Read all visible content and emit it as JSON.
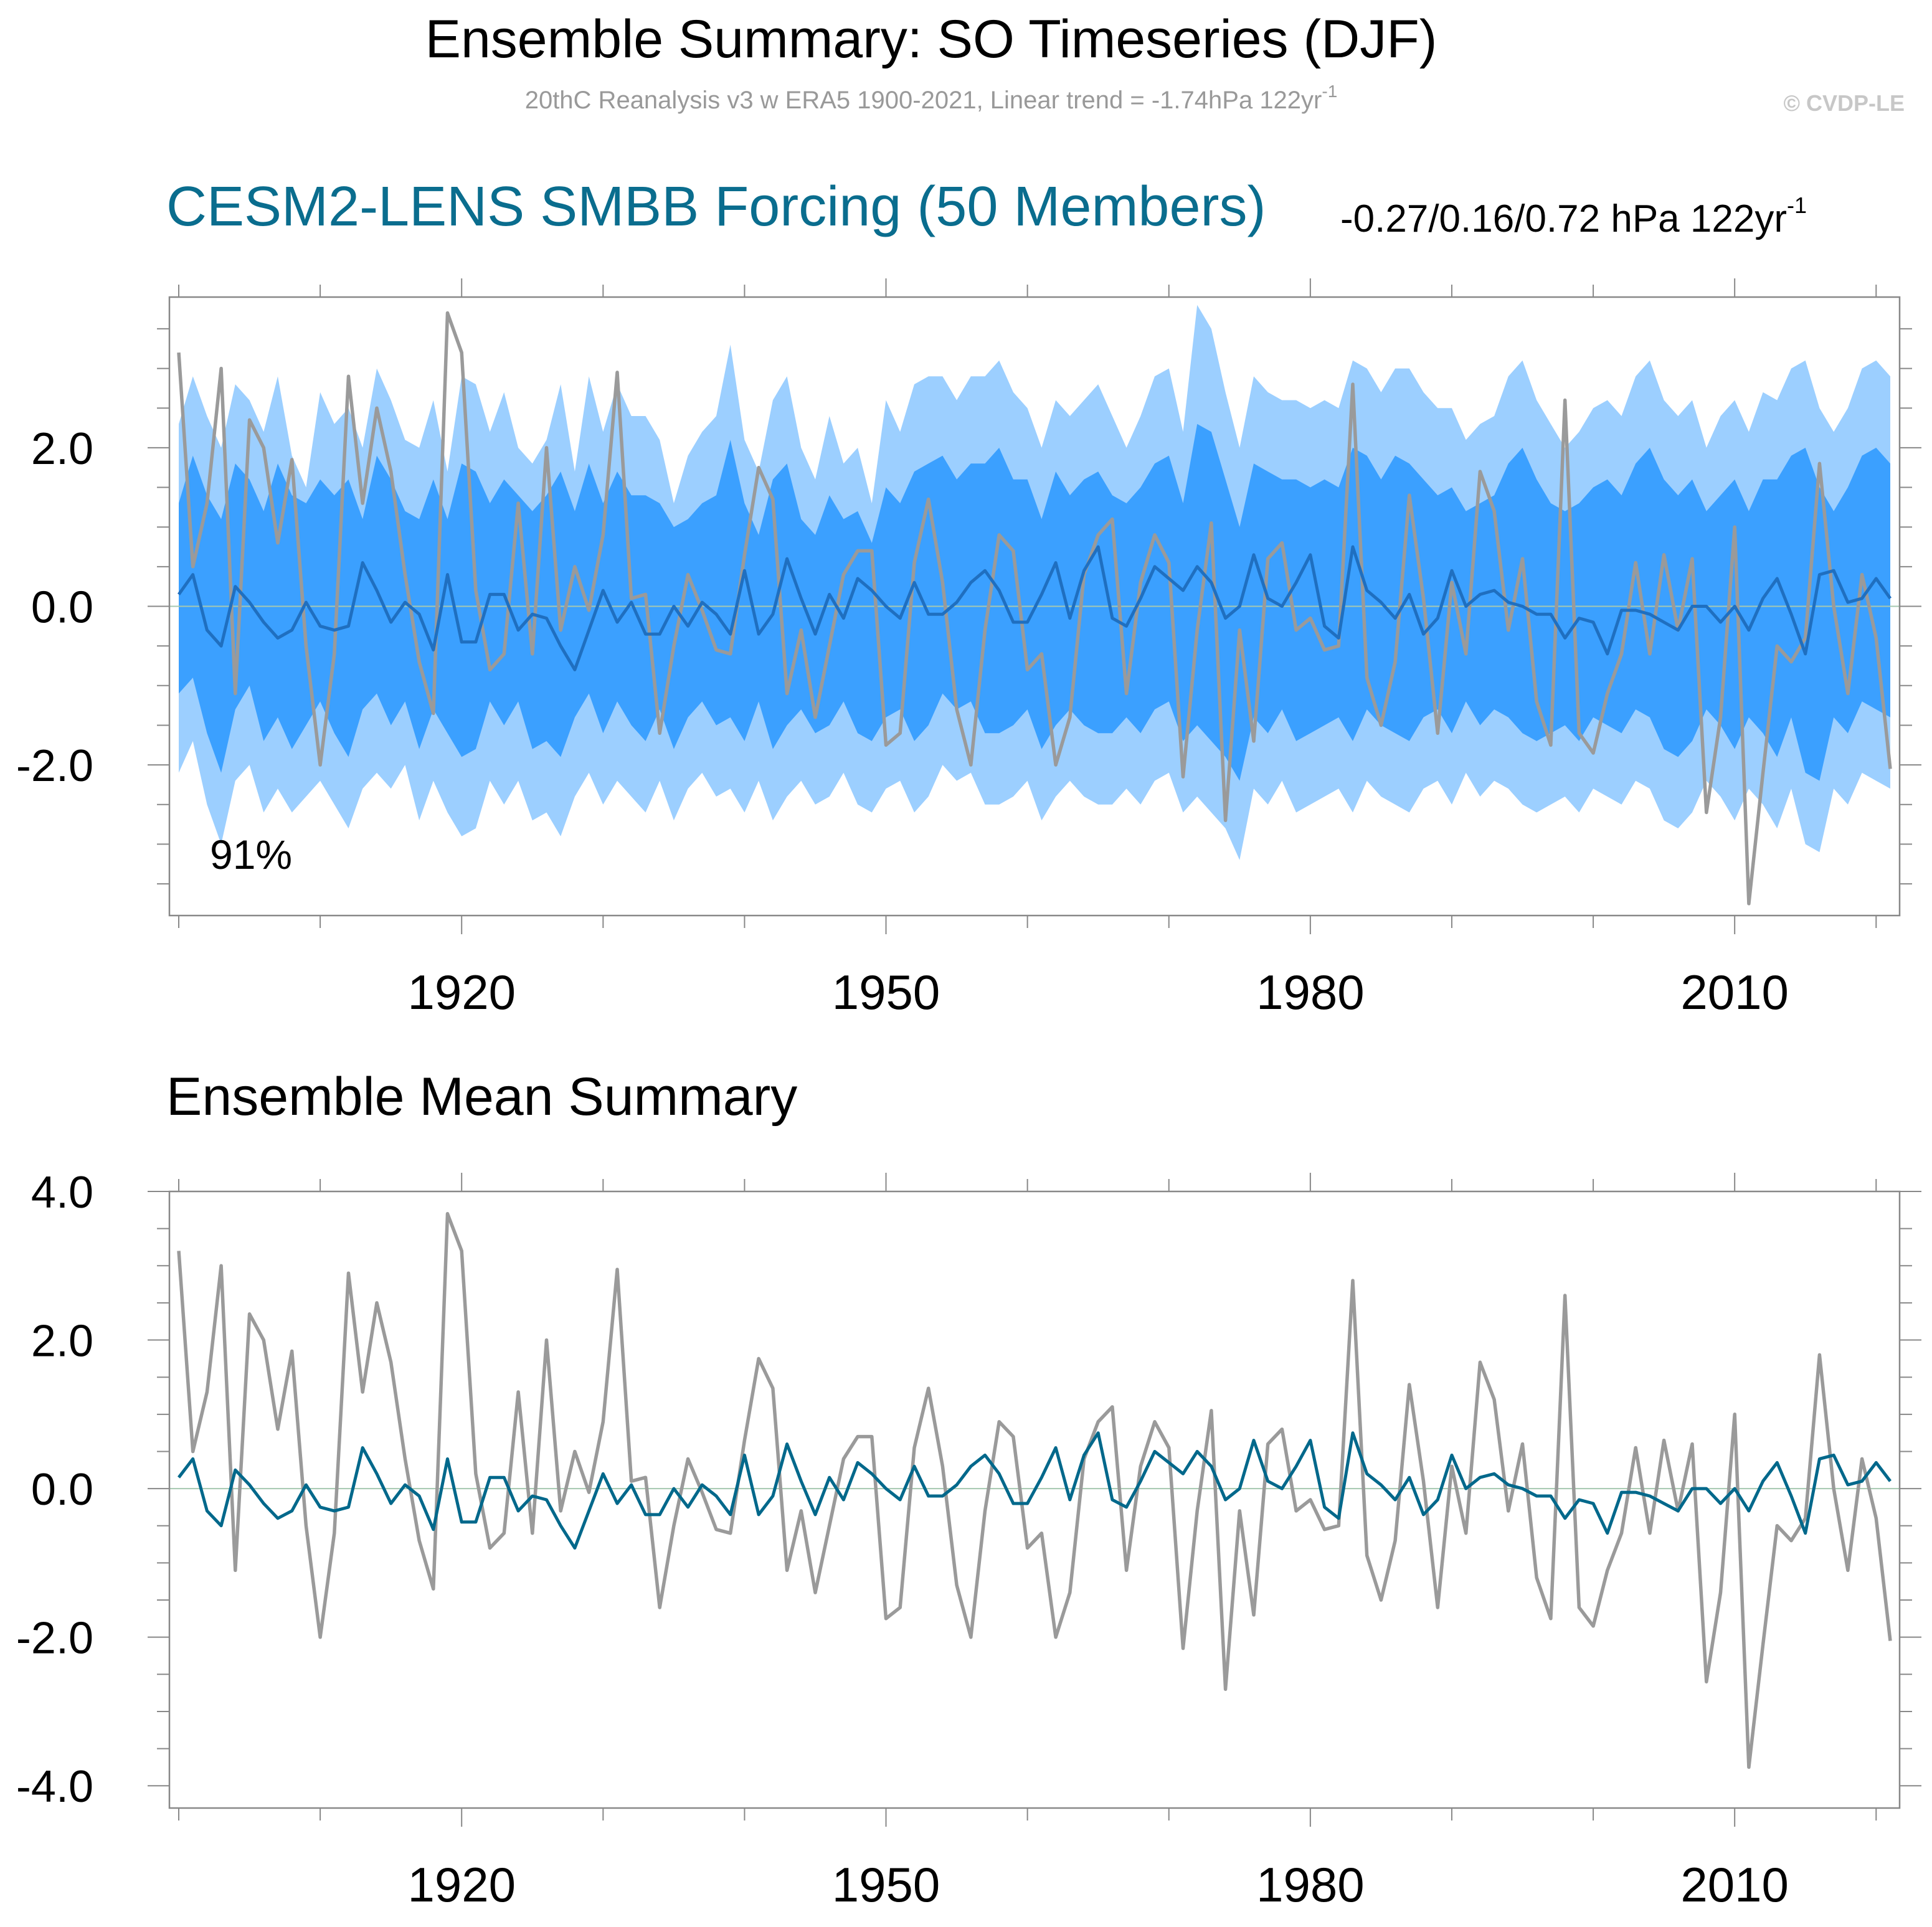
{
  "title": "Ensemble Summary: SO Timeseries (DJF)",
  "subtitle_main": "20thC Reanalysis v3 w ERA5 1900-2021, Linear trend = -1.74hPa 122yr",
  "subtitle_sup": "-1",
  "copyright": "© CVDP-LE",
  "panel1": {
    "title": "CESM2-LENS SMBB Forcing (50 Members)",
    "trend_main": "-0.27/0.16/0.72 hPa 122yr",
    "trend_sup": "-1",
    "percent_label": "91%"
  },
  "panel2": {
    "title": "Ensemble Mean Summary"
  },
  "colors": {
    "obs": "#9a9a9a",
    "mean_panel1": "#1f6fc0",
    "mean_panel2": "#00688b",
    "band_outer": "#9ccfff",
    "band_inner": "#3ba0ff",
    "title_teal": "#0a6d8e",
    "subtitle_gray": "#999999",
    "zero_line": "#a6c8b0"
  },
  "chart_data": [
    {
      "type": "area",
      "title": "CESM2-LENS SMBB Forcing (50 Members)",
      "xlabel": "",
      "ylabel": "",
      "xlim": [
        1900,
        2021
      ],
      "ylim": [
        -3.9,
        3.9
      ],
      "x_ticks": [
        1920,
        1950,
        1980,
        2010
      ],
      "x_tick_labels": [
        "1920",
        "1950",
        "1980",
        "2010"
      ],
      "y_ticks": [
        -2,
        0,
        2
      ],
      "y_tick_labels": [
        "-2.0",
        "0.0",
        "2.0"
      ],
      "annotation": "91%",
      "x_start": 1900,
      "series": [
        {
          "role": "band_outer_upper",
          "values": [
            2.3,
            2.9,
            2.4,
            2.0,
            2.8,
            2.6,
            2.2,
            2.9,
            1.9,
            1.5,
            2.7,
            2.3,
            2.5,
            2.0,
            3.0,
            2.6,
            2.1,
            2.0,
            2.6,
            1.7,
            2.9,
            2.8,
            2.2,
            2.7,
            2.0,
            1.8,
            2.1,
            2.8,
            1.7,
            2.9,
            2.2,
            2.8,
            2.4,
            2.4,
            2.1,
            1.3,
            1.9,
            2.2,
            2.4,
            3.3,
            2.1,
            1.7,
            2.6,
            2.9,
            2.0,
            1.6,
            2.4,
            1.8,
            2.0,
            1.3,
            2.6,
            2.2,
            2.8,
            2.9,
            2.9,
            2.6,
            2.9,
            2.9,
            3.1,
            2.7,
            2.5,
            2.0,
            2.6,
            2.4,
            2.6,
            2.8,
            2.4,
            2.0,
            2.4,
            2.9,
            3.0,
            2.2,
            3.8,
            3.5,
            2.7,
            2.0,
            2.9,
            2.7,
            2.6,
            2.6,
            2.5,
            2.6,
            2.5,
            3.1,
            3.0,
            2.7,
            3.0,
            3.0,
            2.7,
            2.5,
            2.5,
            2.1,
            2.3,
            2.4,
            2.9,
            3.1,
            2.6,
            2.3,
            2.0,
            2.2,
            2.5,
            2.6,
            2.4,
            2.9,
            3.1,
            2.6,
            2.4,
            2.6,
            2.0,
            2.4,
            2.6,
            2.2,
            2.7,
            2.6,
            3.0,
            3.1,
            2.5,
            2.2,
            2.5,
            3.0,
            3.1,
            2.9,
            2.6,
            3.3
          ]
        },
        {
          "role": "band_inner_upper",
          "values": [
            1.3,
            1.9,
            1.4,
            1.1,
            1.8,
            1.6,
            1.2,
            1.8,
            1.4,
            1.3,
            1.6,
            1.4,
            1.6,
            1.1,
            1.9,
            1.6,
            1.2,
            1.1,
            1.6,
            1.1,
            1.8,
            1.7,
            1.3,
            1.6,
            1.4,
            1.2,
            1.4,
            1.7,
            1.2,
            1.8,
            1.3,
            1.7,
            1.4,
            1.4,
            1.3,
            1.0,
            1.1,
            1.3,
            1.4,
            2.1,
            1.3,
            0.9,
            1.6,
            1.8,
            1.1,
            0.9,
            1.4,
            1.1,
            1.2,
            0.8,
            1.5,
            1.3,
            1.7,
            1.8,
            1.9,
            1.6,
            1.8,
            1.8,
            2.0,
            1.6,
            1.6,
            1.1,
            1.7,
            1.4,
            1.6,
            1.7,
            1.4,
            1.3,
            1.5,
            1.8,
            1.9,
            1.3,
            2.3,
            2.2,
            1.6,
            1.0,
            1.8,
            1.7,
            1.6,
            1.6,
            1.5,
            1.6,
            1.5,
            2.0,
            1.9,
            1.6,
            1.9,
            1.8,
            1.6,
            1.4,
            1.5,
            1.2,
            1.3,
            1.4,
            1.8,
            2.0,
            1.6,
            1.3,
            1.2,
            1.3,
            1.5,
            1.6,
            1.4,
            1.8,
            2.0,
            1.6,
            1.4,
            1.6,
            1.2,
            1.4,
            1.6,
            1.2,
            1.6,
            1.6,
            1.9,
            2.0,
            1.5,
            1.2,
            1.5,
            1.9,
            2.0,
            1.8,
            1.6,
            1.8
          ]
        },
        {
          "role": "band_inner_lower",
          "values": [
            -1.1,
            -0.9,
            -1.6,
            -2.1,
            -1.3,
            -1.0,
            -1.7,
            -1.4,
            -1.8,
            -1.5,
            -1.2,
            -1.6,
            -1.9,
            -1.3,
            -1.1,
            -1.5,
            -1.2,
            -1.8,
            -1.3,
            -1.6,
            -1.9,
            -1.8,
            -1.2,
            -1.5,
            -1.2,
            -1.8,
            -1.7,
            -1.9,
            -1.4,
            -1.1,
            -1.6,
            -1.2,
            -1.5,
            -1.7,
            -1.3,
            -1.8,
            -1.4,
            -1.2,
            -1.5,
            -1.4,
            -1.7,
            -1.2,
            -1.8,
            -1.5,
            -1.3,
            -1.6,
            -1.5,
            -1.2,
            -1.6,
            -1.7,
            -1.4,
            -1.3,
            -1.7,
            -1.5,
            -1.1,
            -1.3,
            -1.2,
            -1.6,
            -1.6,
            -1.5,
            -1.3,
            -1.8,
            -1.5,
            -1.3,
            -1.5,
            -1.6,
            -1.6,
            -1.4,
            -1.6,
            -1.3,
            -1.2,
            -1.7,
            -1.5,
            -1.7,
            -1.9,
            -2.2,
            -1.4,
            -1.6,
            -1.3,
            -1.7,
            -1.6,
            -1.5,
            -1.4,
            -1.7,
            -1.3,
            -1.5,
            -1.6,
            -1.7,
            -1.4,
            -1.3,
            -1.6,
            -1.2,
            -1.5,
            -1.3,
            -1.4,
            -1.6,
            -1.7,
            -1.6,
            -1.5,
            -1.7,
            -1.4,
            -1.5,
            -1.6,
            -1.3,
            -1.4,
            -1.8,
            -1.9,
            -1.7,
            -1.3,
            -1.5,
            -1.8,
            -1.4,
            -1.6,
            -1.9,
            -1.4,
            -2.1,
            -2.2,
            -1.4,
            -1.6,
            -1.2,
            -1.3,
            -1.4,
            -1.2,
            -1.3
          ]
        },
        {
          "role": "band_outer_lower",
          "values": [
            -2.1,
            -1.7,
            -2.5,
            -3.0,
            -2.2,
            -2.0,
            -2.6,
            -2.3,
            -2.6,
            -2.4,
            -2.2,
            -2.5,
            -2.8,
            -2.3,
            -2.1,
            -2.3,
            -2.0,
            -2.7,
            -2.2,
            -2.6,
            -2.9,
            -2.8,
            -2.2,
            -2.5,
            -2.2,
            -2.7,
            -2.6,
            -2.9,
            -2.4,
            -2.1,
            -2.5,
            -2.2,
            -2.4,
            -2.6,
            -2.2,
            -2.7,
            -2.3,
            -2.1,
            -2.4,
            -2.3,
            -2.6,
            -2.2,
            -2.7,
            -2.4,
            -2.2,
            -2.5,
            -2.4,
            -2.1,
            -2.5,
            -2.6,
            -2.3,
            -2.2,
            -2.6,
            -2.4,
            -2.0,
            -2.2,
            -2.1,
            -2.5,
            -2.5,
            -2.4,
            -2.2,
            -2.7,
            -2.4,
            -2.2,
            -2.4,
            -2.5,
            -2.5,
            -2.3,
            -2.5,
            -2.2,
            -2.1,
            -2.6,
            -2.4,
            -2.6,
            -2.8,
            -3.2,
            -2.3,
            -2.5,
            -2.2,
            -2.6,
            -2.5,
            -2.4,
            -2.3,
            -2.6,
            -2.2,
            -2.4,
            -2.5,
            -2.6,
            -2.3,
            -2.2,
            -2.5,
            -2.1,
            -2.4,
            -2.2,
            -2.3,
            -2.5,
            -2.6,
            -2.5,
            -2.4,
            -2.6,
            -2.3,
            -2.4,
            -2.5,
            -2.2,
            -2.3,
            -2.7,
            -2.8,
            -2.6,
            -2.2,
            -2.4,
            -2.7,
            -2.3,
            -2.5,
            -2.8,
            -2.3,
            -3.0,
            -3.1,
            -2.3,
            -2.5,
            -2.1,
            -2.2,
            -2.3,
            -2.1,
            -2.2
          ]
        },
        {
          "role": "ensemble_mean",
          "values": [
            0.15,
            0.4,
            -0.3,
            -0.5,
            0.25,
            0.05,
            -0.2,
            -0.4,
            -0.3,
            0.05,
            -0.25,
            -0.3,
            -0.25,
            0.55,
            0.2,
            -0.2,
            0.05,
            -0.1,
            -0.55,
            0.4,
            -0.45,
            -0.45,
            0.15,
            0.15,
            -0.3,
            -0.1,
            -0.15,
            -0.5,
            -0.8,
            -0.3,
            0.2,
            -0.2,
            0.05,
            -0.35,
            -0.35,
            0.0,
            -0.25,
            0.05,
            -0.1,
            -0.35,
            0.45,
            -0.35,
            -0.1,
            0.6,
            0.1,
            -0.35,
            0.15,
            -0.15,
            0.35,
            0.2,
            0.0,
            -0.15,
            0.3,
            -0.1,
            -0.1,
            0.05,
            0.3,
            0.45,
            0.2,
            -0.2,
            -0.2,
            0.15,
            0.55,
            -0.15,
            0.45,
            0.75,
            -0.15,
            -0.25,
            0.1,
            0.5,
            0.35,
            0.2,
            0.5,
            0.3,
            -0.15,
            0.0,
            0.65,
            0.1,
            0.0,
            0.3,
            0.65,
            -0.25,
            -0.4,
            0.75,
            0.2,
            0.05,
            -0.15,
            0.15,
            -0.35,
            -0.15,
            0.45,
            0.0,
            0.15,
            0.2,
            0.05,
            0.0,
            -0.1,
            -0.1,
            -0.4,
            -0.15,
            -0.2,
            -0.6,
            -0.05,
            -0.05,
            -0.1,
            -0.2,
            -0.3,
            0.0,
            0.0,
            -0.2,
            0.0,
            -0.3,
            0.1,
            0.35,
            -0.1,
            -0.6,
            0.4,
            0.45,
            0.05,
            0.1,
            0.35,
            0.1
          ]
        },
        {
          "role": "observed",
          "values": [
            3.2,
            0.5,
            1.3,
            3.0,
            -1.1,
            2.35,
            2.0,
            0.8,
            1.85,
            -0.5,
            -2.0,
            -0.6,
            2.9,
            1.3,
            2.5,
            1.7,
            0.4,
            -0.7,
            -1.35,
            3.7,
            3.2,
            0.2,
            -0.8,
            -0.6,
            1.3,
            -0.6,
            2.0,
            -0.3,
            0.5,
            -0.05,
            0.9,
            2.95,
            0.1,
            0.15,
            -1.6,
            -0.5,
            0.4,
            -0.05,
            -0.55,
            -0.6,
            0.65,
            1.75,
            1.35,
            -1.1,
            -0.3,
            -1.4,
            -0.5,
            0.4,
            0.7,
            0.7,
            -1.75,
            -1.6,
            0.55,
            1.35,
            0.3,
            -1.3,
            -2.0,
            -0.3,
            0.9,
            0.7,
            -0.8,
            -0.6,
            -2.0,
            -1.4,
            0.4,
            0.9,
            1.1,
            -1.1,
            0.3,
            0.9,
            0.55,
            -2.15,
            -0.3,
            1.05,
            -2.7,
            -0.3,
            -1.7,
            0.6,
            0.8,
            -0.3,
            -0.15,
            -0.55,
            -0.5,
            2.8,
            -0.9,
            -1.5,
            -0.7,
            1.4,
            0.1,
            -1.6,
            0.3,
            -0.6,
            1.7,
            1.2,
            -0.3,
            0.6,
            -1.2,
            -1.75,
            2.6,
            -1.6,
            -1.85,
            -1.1,
            -0.6,
            0.55,
            -0.6,
            0.65,
            -0.3,
            0.6,
            -2.6,
            -1.4,
            1.0,
            -3.75,
            -2.1,
            -0.5,
            -0.7,
            -0.4,
            1.8,
            0.0,
            -1.1,
            0.4,
            -0.4,
            -2.05
          ]
        }
      ]
    },
    {
      "type": "line",
      "title": "Ensemble Mean Summary",
      "xlabel": "",
      "ylabel": "",
      "xlim": [
        1900,
        2021
      ],
      "ylim": [
        -4.3,
        4.0
      ],
      "x_ticks": [
        1920,
        1950,
        1980,
        2010
      ],
      "x_tick_labels": [
        "1920",
        "1950",
        "1980",
        "2010"
      ],
      "y_ticks": [
        -4,
        -2,
        0,
        2,
        4
      ],
      "y_tick_labels": [
        "-4.0",
        "-2.0",
        "0.0",
        "2.0",
        "4.0"
      ],
      "x_start": 1900,
      "series_refs": [
        "observed",
        "ensemble_mean"
      ]
    }
  ]
}
